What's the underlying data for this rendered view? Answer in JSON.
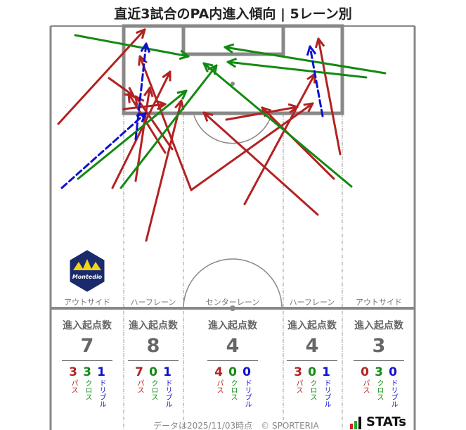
{
  "title": "直近3試合のPA内進入傾向 | 5レーン別",
  "colors": {
    "pass": "#b22222",
    "cross": "#128a12",
    "dribble": "#1010d0",
    "line": "#888888"
  },
  "lanes": [
    {
      "label": "アウトサイド",
      "header": "進入起点数",
      "total": "7",
      "pass": "3",
      "cross": "3",
      "dribble": "1"
    },
    {
      "label": "ハーフレーン",
      "header": "進入起点数",
      "total": "8",
      "pass": "7",
      "cross": "0",
      "dribble": "1"
    },
    {
      "label": "センターレーン",
      "header": "進入起点数",
      "total": "4",
      "pass": "4",
      "cross": "0",
      "dribble": "0"
    },
    {
      "label": "ハーフレーン",
      "header": "進入起点数",
      "total": "4",
      "pass": "3",
      "cross": "0",
      "dribble": "1"
    },
    {
      "label": "アウトサイド",
      "header": "進入起点数",
      "total": "3",
      "pass": "0",
      "cross": "3",
      "dribble": "0"
    }
  ],
  "type_labels": {
    "pass": "パス",
    "cross": "クロス",
    "dribble": "ドリブル"
  },
  "footer": "データは2025/11/03時点　© SPORTERIA",
  "logos": {
    "team": "Montedio YAMAGATA",
    "brand": "STATs"
  }
}
